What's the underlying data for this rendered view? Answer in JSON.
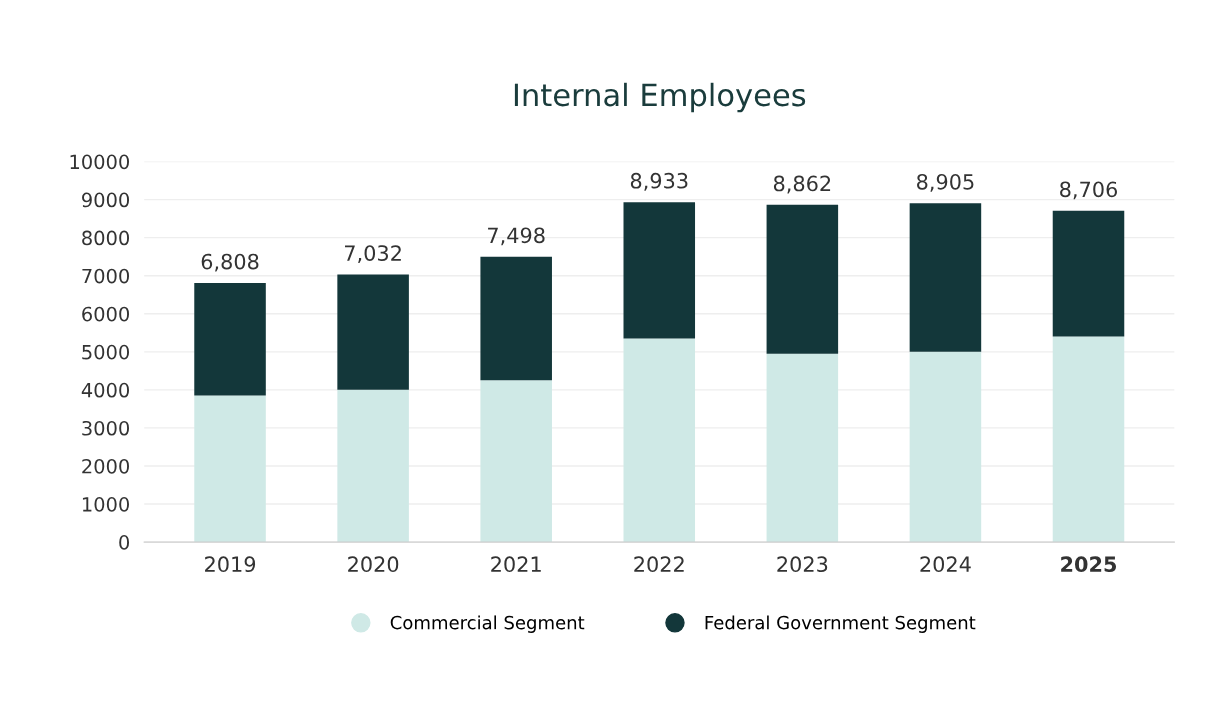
{
  "chart_data": {
    "type": "bar",
    "title": "Internal Employees",
    "stacked": true,
    "categories": [
      "2019",
      "2020",
      "2021",
      "2022",
      "2023",
      "2024",
      "2025"
    ],
    "series": [
      {
        "name": "Commercial Segment",
        "color": "#cfe9e6",
        "values": [
          3850,
          4000,
          4250,
          5350,
          4950,
          5000,
          5400
        ]
      },
      {
        "name": "Federal Government Segment",
        "color": "#13373a",
        "values": [
          2958,
          3032,
          3248,
          3583,
          3912,
          3905,
          3306
        ]
      }
    ],
    "totals": [
      "6,808",
      "7,032",
      "7,498",
      "8,933",
      "8,862",
      "8,905",
      "8,706"
    ],
    "ylim": [
      0,
      10000
    ],
    "yticks": [
      0,
      1000,
      2000,
      3000,
      4000,
      5000,
      6000,
      7000,
      8000,
      9000,
      10000
    ],
    "grid": "y",
    "legend": "bottom"
  }
}
